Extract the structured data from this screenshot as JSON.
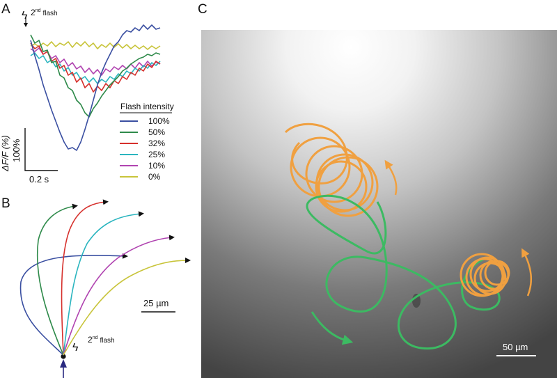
{
  "panel_labels": {
    "a": "A",
    "b": "B",
    "c": "C"
  },
  "flash_a": {
    "symbol": "ϟ",
    "base": "2",
    "sup": "nd",
    "word": "flash"
  },
  "flash_b": {
    "symbol": "ϟ",
    "base": "2",
    "sup": "nd",
    "word": "flash"
  },
  "legend": {
    "title": "Flash intensity",
    "items": [
      {
        "label": "100%",
        "color": "#3a4fa1"
      },
      {
        "label": "50%",
        "color": "#2e8a4a"
      },
      {
        "label": "32%",
        "color": "#d6302c"
      },
      {
        "label": "25%",
        "color": "#2bb5bf"
      },
      {
        "label": "10%",
        "color": "#b043b0"
      },
      {
        "label": "0%",
        "color": "#c8c43a"
      }
    ]
  },
  "scalebar_a": {
    "y_label_1": "ΔF/F (%)",
    "y_label_2": "100%",
    "x_label": "0.2 s"
  },
  "scalebar_b": {
    "label": "25 µm"
  },
  "scalebar_c": {
    "label": "50 µm"
  },
  "colors": {
    "arrow": "#111111",
    "swim_before": "#f0a040",
    "swim_after": "#3cba62",
    "incoming": "#2a2a80"
  }
}
